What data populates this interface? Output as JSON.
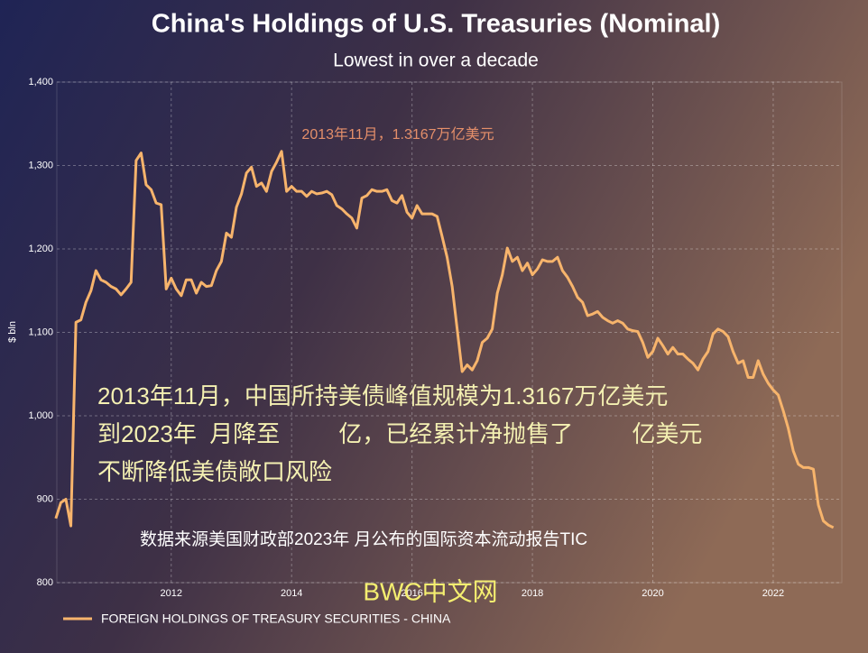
{
  "chart_data": {
    "type": "line",
    "title": "China's Holdings of U.S. Treasuries (Nominal)",
    "subtitle": "Lowest in over a decade",
    "y_label": "$ bln",
    "annotation": "2013年11月，1.3167万亿美元",
    "overlay_lines": [
      "2013年11月，中国所持美债峰值规模为1.3167万亿美元",
      "到2023年  月降至         亿，已经累计净抛售了         亿美元",
      "不断降低美债敞口风险"
    ],
    "source_note": "数据来源美国财政部2023年  月公布的国际资本流动报告TIC",
    "watermark": "BWC中文网",
    "grid": true,
    "xlim": [
      2010.1,
      2023.14
    ],
    "xticks": [
      2012,
      2014,
      2016,
      2018,
      2020,
      2022
    ],
    "ylim": [
      800,
      1400
    ],
    "yticks": [
      {
        "value": 800,
        "label": "800"
      },
      {
        "value": 900,
        "label": "900"
      },
      {
        "value": 1000,
        "label": "1,000"
      },
      {
        "value": 1100,
        "label": "1,100"
      },
      {
        "value": 1200,
        "label": "1,200"
      },
      {
        "value": 1300,
        "label": "1,300"
      },
      {
        "value": 1400,
        "label": "1,400"
      }
    ],
    "x": [
      2010.083,
      2010.167,
      2010.25,
      2010.333,
      2010.417,
      2010.5,
      2010.583,
      2010.667,
      2010.75,
      2010.833,
      2010.917,
      2011,
      2011.083,
      2011.167,
      2011.25,
      2011.333,
      2011.417,
      2011.5,
      2011.583,
      2011.667,
      2011.75,
      2011.833,
      2011.917,
      2012,
      2012.083,
      2012.167,
      2012.25,
      2012.333,
      2012.417,
      2012.5,
      2012.583,
      2012.667,
      2012.75,
      2012.833,
      2012.917,
      2013,
      2013.083,
      2013.167,
      2013.25,
      2013.333,
      2013.417,
      2013.5,
      2013.583,
      2013.667,
      2013.75,
      2013.833,
      2013.917,
      2014,
      2014.083,
      2014.167,
      2014.25,
      2014.333,
      2014.417,
      2014.5,
      2014.583,
      2014.667,
      2014.75,
      2014.833,
      2014.917,
      2015,
      2015.083,
      2015.167,
      2015.25,
      2015.333,
      2015.417,
      2015.5,
      2015.583,
      2015.667,
      2015.75,
      2015.833,
      2015.917,
      2016,
      2016.083,
      2016.167,
      2016.25,
      2016.333,
      2016.417,
      2016.5,
      2016.583,
      2016.667,
      2016.75,
      2016.833,
      2016.917,
      2017,
      2017.083,
      2017.167,
      2017.25,
      2017.333,
      2017.417,
      2017.5,
      2017.583,
      2017.667,
      2017.75,
      2017.833,
      2017.917,
      2018,
      2018.083,
      2018.167,
      2018.25,
      2018.333,
      2018.417,
      2018.5,
      2018.583,
      2018.667,
      2018.75,
      2018.833,
      2018.917,
      2019,
      2019.083,
      2019.167,
      2019.25,
      2019.333,
      2019.417,
      2019.5,
      2019.583,
      2019.667,
      2019.75,
      2019.833,
      2019.917,
      2020,
      2020.083,
      2020.167,
      2020.25,
      2020.333,
      2020.417,
      2020.5,
      2020.583,
      2020.667,
      2020.75,
      2020.833,
      2020.917,
      2021,
      2021.083,
      2021.167,
      2021.25,
      2021.333,
      2021.417,
      2021.5,
      2021.583,
      2021.667,
      2021.75,
      2021.833,
      2021.917,
      2022,
      2022.083,
      2022.167,
      2022.25,
      2022.333,
      2022.417,
      2022.5,
      2022.583,
      2022.667,
      2022.75,
      2022.833,
      2022.917,
      2023
    ],
    "series": [
      {
        "name": "FOREIGN HOLDINGS OF TREASURY SECURITIES - CHINA",
        "color": "#f7b46c",
        "values": [
          877,
          896,
          900,
          868,
          1112,
          1115,
          1136,
          1150,
          1174,
          1163,
          1160,
          1155,
          1152,
          1145,
          1152,
          1160,
          1306,
          1315,
          1277,
          1271,
          1255,
          1253,
          1152,
          1165,
          1152,
          1144,
          1163,
          1163,
          1147,
          1160,
          1155,
          1156,
          1174,
          1185,
          1219,
          1214,
          1250,
          1266,
          1291,
          1298,
          1275,
          1279,
          1269,
          1293,
          1304,
          1317,
          1269,
          1275,
          1269,
          1269,
          1263,
          1269,
          1266,
          1267,
          1269,
          1265,
          1252,
          1248,
          1242,
          1237,
          1225,
          1261,
          1264,
          1271,
          1269,
          1269,
          1271,
          1258,
          1255,
          1264,
          1244,
          1237,
          1252,
          1242,
          1242,
          1242,
          1239,
          1215,
          1190,
          1155,
          1104,
          1053,
          1061,
          1055,
          1066,
          1088,
          1093,
          1104,
          1147,
          1169,
          1201,
          1185,
          1190,
          1174,
          1183,
          1169,
          1176,
          1187,
          1185,
          1185,
          1190,
          1174,
          1166,
          1155,
          1142,
          1136,
          1120,
          1122,
          1125,
          1118,
          1114,
          1111,
          1114,
          1111,
          1104,
          1102,
          1101,
          1088,
          1070,
          1077,
          1093,
          1084,
          1074,
          1082,
          1074,
          1074,
          1068,
          1063,
          1055,
          1068,
          1077,
          1098,
          1104,
          1101,
          1095,
          1077,
          1063,
          1066,
          1046,
          1046,
          1066,
          1050,
          1039,
          1031,
          1025,
          1006,
          985,
          958,
          942,
          938,
          938,
          936,
          893,
          874,
          869,
          866
        ]
      }
    ]
  }
}
